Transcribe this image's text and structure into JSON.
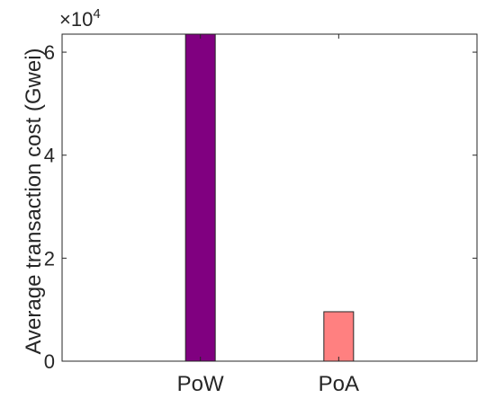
{
  "chart_data": {
    "type": "bar",
    "categories": [
      "PoW",
      "PoA"
    ],
    "values": [
      63500,
      9600
    ],
    "colors": [
      "#800080",
      "#ff8080"
    ],
    "ylabel": "Average transaction cost (Gwei)",
    "xlabel": "",
    "title": "",
    "ylim": [
      0,
      63500
    ],
    "yticks": [
      0,
      2,
      4,
      6
    ],
    "ytick_labels": [
      "0",
      "2",
      "4",
      "6"
    ],
    "y_exponent_base": "×10",
    "y_exponent_power": "4",
    "grid": false,
    "box": true
  }
}
